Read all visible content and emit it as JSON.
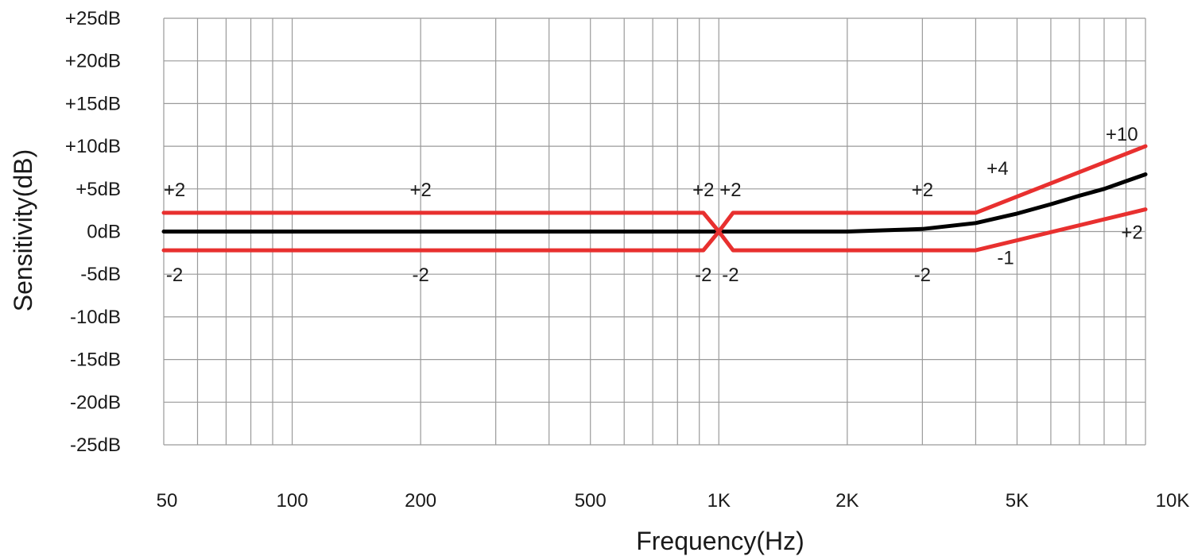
{
  "chart_data": {
    "type": "line",
    "title": "",
    "xlabel": "Frequency(Hz)",
    "ylabel": "Sensitivity(dB)",
    "x_scale": "log",
    "xlim": [
      50,
      10000
    ],
    "ylim": [
      -25,
      25
    ],
    "grid": true,
    "x_tick_labels": [
      {
        "value": 50,
        "label": "50"
      },
      {
        "value": 100,
        "label": "100"
      },
      {
        "value": 200,
        "label": "200"
      },
      {
        "value": 500,
        "label": "500"
      },
      {
        "value": 1000,
        "label": "1K"
      },
      {
        "value": 2000,
        "label": "2K"
      },
      {
        "value": 5000,
        "label": "5K"
      },
      {
        "value": 10000,
        "label": "10K"
      }
    ],
    "x_grid_values": [
      50,
      60,
      70,
      80,
      90,
      100,
      200,
      300,
      400,
      500,
      600,
      700,
      800,
      900,
      1000,
      2000,
      3000,
      4000,
      5000,
      6000,
      7000,
      8000,
      9000,
      10000
    ],
    "y_tick_labels": [
      {
        "value": 25,
        "label": "+25dB"
      },
      {
        "value": 20,
        "label": "+20dB"
      },
      {
        "value": 15,
        "label": "+15dB"
      },
      {
        "value": 10,
        "label": "+10dB"
      },
      {
        "value": 5,
        "label": "+5dB"
      },
      {
        "value": 0,
        "label": "0dB"
      },
      {
        "value": -5,
        "label": "-5dB"
      },
      {
        "value": -10,
        "label": "-10dB"
      },
      {
        "value": -15,
        "label": "-15dB"
      },
      {
        "value": -20,
        "label": "-20dB"
      },
      {
        "value": -25,
        "label": "-25dB"
      }
    ],
    "series": [
      {
        "role": "response",
        "color": "#000000",
        "x": [
          50,
          100,
          200,
          500,
          1000,
          2000,
          3000,
          4000,
          5000,
          6000,
          7000,
          8000,
          9000,
          10000
        ],
        "y": [
          0,
          0,
          0,
          0,
          0,
          0,
          0.3,
          1.0,
          2.1,
          3.2,
          4.2,
          5.0,
          5.9,
          6.7
        ]
      },
      {
        "role": "upper-limit",
        "color": "#e8302f",
        "x": [
          50,
          920,
          1000,
          1080,
          4000,
          10000
        ],
        "y": [
          2.2,
          2.2,
          0,
          2.2,
          2.2,
          10
        ]
      },
      {
        "role": "lower-limit",
        "color": "#e8302f",
        "x": [
          50,
          920,
          1000,
          1080,
          4000,
          10000
        ],
        "y": [
          -2.2,
          -2.2,
          0,
          -2.2,
          -2.2,
          2.6
        ]
      }
    ],
    "annotations": [
      {
        "text": "+2",
        "x": 53,
        "y": 5
      },
      {
        "text": "+2",
        "x": 200,
        "y": 5
      },
      {
        "text": "+2",
        "x": 920,
        "y": 5
      },
      {
        "text": "+2",
        "x": 1065,
        "y": 5
      },
      {
        "text": "+2",
        "x": 3000,
        "y": 5
      },
      {
        "text": "+4",
        "x": 4500,
        "y": 7.5
      },
      {
        "text": "+10",
        "x": 8800,
        "y": 11.5
      },
      {
        "text": "-2",
        "x": 53,
        "y": -5
      },
      {
        "text": "-2",
        "x": 200,
        "y": -5
      },
      {
        "text": "-2",
        "x": 920,
        "y": -5
      },
      {
        "text": "-2",
        "x": 1065,
        "y": -5
      },
      {
        "text": "-2",
        "x": 3000,
        "y": -5
      },
      {
        "text": "-1",
        "x": 4700,
        "y": -3
      },
      {
        "text": "+2",
        "x": 9300,
        "y": 0
      }
    ]
  }
}
